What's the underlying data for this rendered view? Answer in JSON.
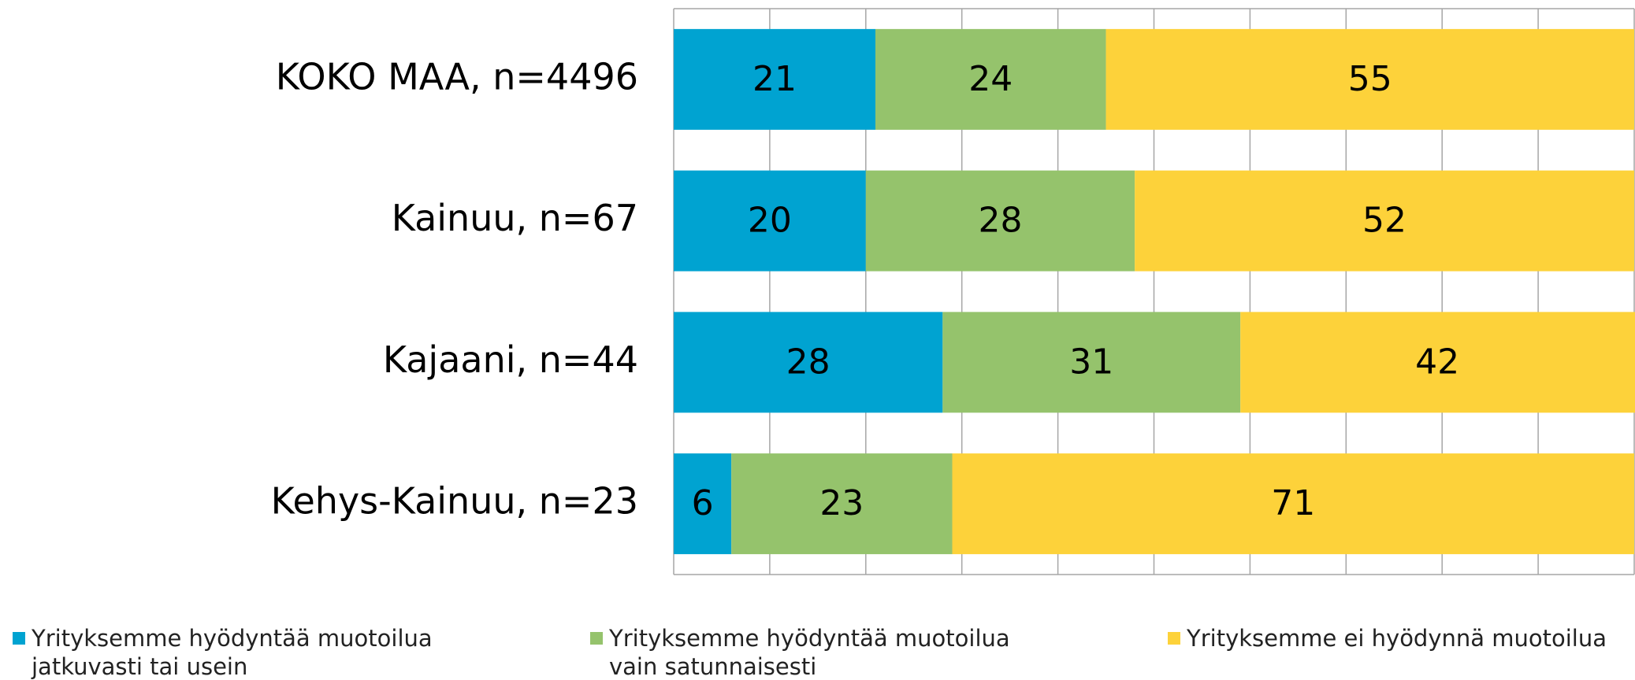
{
  "chart_data": {
    "type": "stacked-bar-horizontal",
    "categories": [
      "KOKO MAA, n=4496",
      "Kainuu, n=67",
      "Kajaani, n=44",
      "Kehys-Kainuu, n=23"
    ],
    "series": [
      {
        "name": "Yrityksemme hyödyntää muotoilua jatkuvasti tai usein",
        "color": "#00a3d1",
        "values": [
          21,
          20,
          28,
          6
        ]
      },
      {
        "name": "Yrityksemme hyödyntää muotoilua vain satunnaisesti",
        "color": "#95c36c",
        "values": [
          24,
          28,
          31,
          23
        ]
      },
      {
        "name": "Yrityksemme ei hyödynnä muotoilua",
        "color": "#fdd23a",
        "values": [
          55,
          52,
          42,
          71
        ]
      }
    ],
    "xlim": [
      0,
      100
    ],
    "xticks": [
      0,
      10,
      20,
      30,
      40,
      50,
      60,
      70,
      80,
      90,
      100
    ],
    "grid": true,
    "legend": "bottom"
  }
}
